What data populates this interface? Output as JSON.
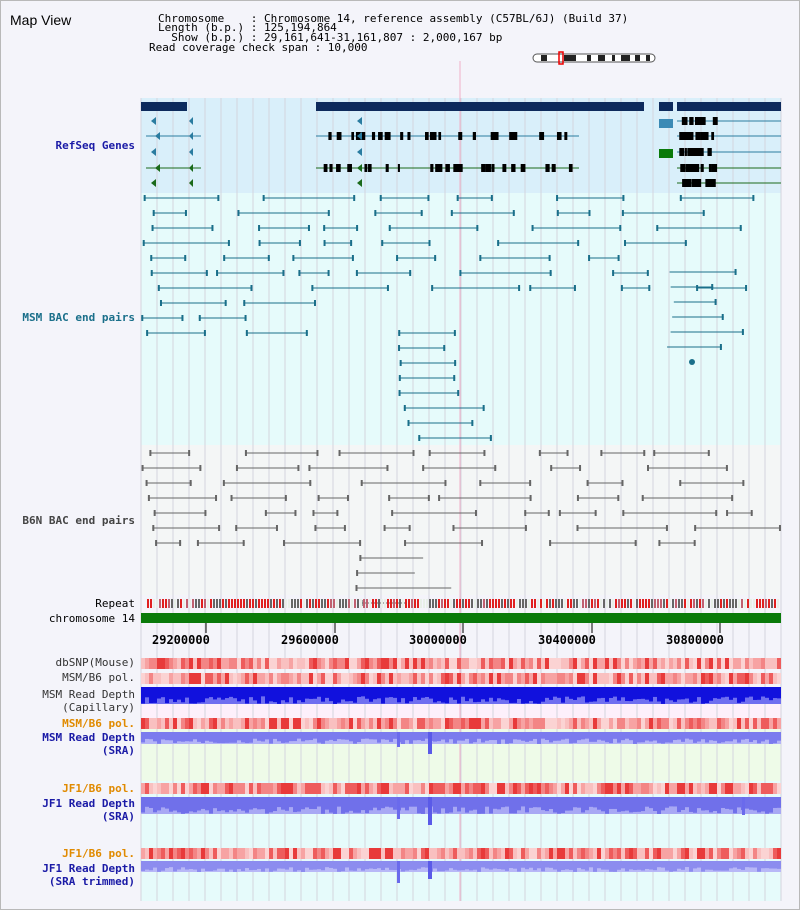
{
  "view_title": "Map View",
  "info": {
    "chromosome_line": "Chromosome    : Chromosome 14, reference assembly (C57BL/6J) (Build 37)",
    "length_line": "Length (b.p.) : 125,194,864",
    "show_line": "  Show (b.p.) : 29,161,641-31,161,807 : 2,000,167 bp",
    "coverage_line": "Read coverage check span : 10,000"
  },
  "tracks": {
    "refseq": "RefSeq Genes",
    "msm_bac": "MSM BAC end pairs",
    "b6n_bac": "B6N BAC end pairs",
    "repeat": "Repeat",
    "chromosome": "chromosome 14",
    "dbsnp": "dbSNP(Mouse)",
    "msm_b6_pol_1": "MSM/B6 pol.",
    "msm_depth_cap_1": "MSM Read Depth",
    "msm_depth_cap_2": "(Capillary)",
    "msm_b6_pol_2": "MSM/B6 pol.",
    "msm_depth_sra_1": "MSM Read Depth",
    "msm_depth_sra_2": "(SRA)",
    "jf1_b6_pol_1": "JF1/B6 pol.",
    "jf1_depth_sra_1": "JF1 Read Depth",
    "jf1_depth_sra_2": "(SRA)",
    "jf1_b6_pol_2": "JF1/B6 pol.",
    "jf1_depth_trim_1": "JF1 Read Depth",
    "jf1_depth_trim_2": "(SRA trimmed)"
  },
  "axis_ticks": [
    "29200000",
    "29600000",
    "30000000",
    "30400000",
    "30800000"
  ],
  "colors": {
    "refseq_label": "#1a1aa6",
    "msm_label": "#1a6f8a",
    "b6n_label": "#444444",
    "pol_label_orange": "#e08a00",
    "depth_label_blue": "#1a1aa6",
    "chromosome_bar": "#0a7a0a"
  }
}
